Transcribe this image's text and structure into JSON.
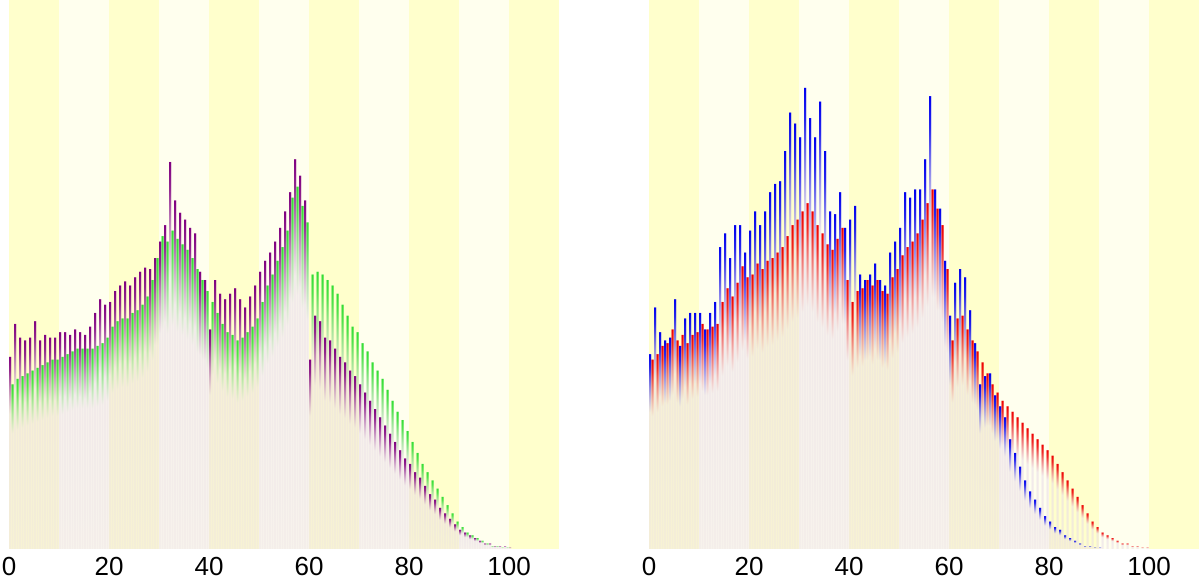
{
  "chart_data": [
    {
      "type": "bar",
      "title": "",
      "xlabel": "",
      "ylabel": "",
      "xlim": [
        0,
        110
      ],
      "ylim": [
        0,
        400
      ],
      "x_ticks": [
        "0",
        "20",
        "40",
        "60",
        "80",
        "100"
      ],
      "x_tick_values": [
        0,
        20,
        40,
        60,
        80,
        100
      ],
      "background_bands": {
        "width": 10,
        "colors": [
          "#ffffcc",
          "#ffffee"
        ]
      },
      "series": [
        {
          "color": "#800080",
          "x": [
            0,
            1,
            2,
            3,
            4,
            5,
            6,
            7,
            8,
            9,
            10,
            11,
            12,
            13,
            14,
            15,
            16,
            17,
            18,
            19,
            20,
            21,
            22,
            23,
            24,
            25,
            26,
            27,
            28,
            29,
            30,
            31,
            32,
            33,
            34,
            35,
            36,
            37,
            38,
            39,
            40,
            41,
            42,
            43,
            44,
            45,
            46,
            47,
            48,
            49,
            50,
            51,
            52,
            53,
            54,
            55,
            56,
            57,
            58,
            59,
            60,
            61,
            62,
            63,
            64,
            65,
            66,
            67,
            68,
            69,
            70,
            71,
            72,
            73,
            74,
            75,
            76,
            77,
            78,
            79,
            80,
            81,
            82,
            83,
            84,
            85,
            86,
            87,
            88,
            89,
            90,
            91,
            92,
            93,
            94,
            95,
            96,
            97,
            98,
            99,
            100
          ],
          "values": [
            140,
            164,
            154,
            152,
            154,
            166,
            152,
            156,
            154,
            154,
            158,
            158,
            156,
            160,
            158,
            156,
            162,
            172,
            182,
            178,
            180,
            188,
            192,
            195,
            192,
            198,
            202,
            205,
            204,
            212,
            224,
            236,
            282,
            254,
            245,
            240,
            234,
            230,
            202,
            196,
            160,
            196,
            186,
            182,
            186,
            190,
            182,
            176,
            184,
            192,
            202,
            210,
            216,
            224,
            234,
            246,
            260,
            284,
            272,
            254,
            138,
            170,
            166,
            154,
            152,
            146,
            140,
            136,
            130,
            126,
            120,
            114,
            108,
            102,
            96,
            90,
            84,
            78,
            72,
            66,
            62,
            56,
            52,
            46,
            40,
            36,
            30,
            26,
            22,
            18,
            14,
            12,
            10,
            8,
            6,
            4,
            4,
            2,
            2,
            2,
            1
          ]
        },
        {
          "color": "#33dd33",
          "x": [
            0,
            1,
            2,
            3,
            4,
            5,
            6,
            7,
            8,
            9,
            10,
            11,
            12,
            13,
            14,
            15,
            16,
            17,
            18,
            19,
            20,
            21,
            22,
            23,
            24,
            25,
            26,
            27,
            28,
            29,
            30,
            31,
            32,
            33,
            34,
            35,
            36,
            37,
            38,
            39,
            40,
            41,
            42,
            43,
            44,
            45,
            46,
            47,
            48,
            49,
            50,
            51,
            52,
            53,
            54,
            55,
            56,
            57,
            58,
            59,
            60,
            61,
            62,
            63,
            64,
            65,
            66,
            67,
            68,
            69,
            70,
            71,
            72,
            73,
            74,
            75,
            76,
            77,
            78,
            79,
            80,
            81,
            82,
            83,
            84,
            85,
            86,
            87,
            88,
            89,
            90,
            91,
            92,
            93,
            94,
            95,
            96,
            97,
            98,
            99,
            100
          ],
          "values": [
            120,
            124,
            126,
            128,
            130,
            132,
            134,
            136,
            138,
            138,
            140,
            142,
            144,
            146,
            146,
            146,
            146,
            148,
            150,
            154,
            162,
            166,
            168,
            168,
            172,
            174,
            178,
            184,
            196,
            212,
            228,
            224,
            232,
            226,
            222,
            218,
            212,
            204,
            196,
            188,
            180,
            172,
            164,
            158,
            156,
            152,
            154,
            158,
            162,
            168,
            180,
            192,
            200,
            210,
            220,
            232,
            256,
            264,
            250,
            238,
            200,
            202,
            200,
            196,
            192,
            186,
            178,
            170,
            162,
            158,
            150,
            144,
            136,
            130,
            124,
            116,
            108,
            100,
            94,
            86,
            78,
            70,
            62,
            56,
            50,
            44,
            38,
            32,
            26,
            20,
            16,
            12,
            10,
            8,
            6,
            4,
            2,
            2,
            1,
            1,
            0
          ]
        }
      ]
    },
    {
      "type": "bar",
      "title": "",
      "xlabel": "",
      "ylabel": "",
      "xlim": [
        0,
        110
      ],
      "ylim": [
        0,
        400
      ],
      "x_ticks": [
        "0",
        "20",
        "40",
        "60",
        "80",
        "100"
      ],
      "x_tick_values": [
        0,
        20,
        40,
        60,
        80,
        100
      ],
      "background_bands": {
        "width": 10,
        "colors": [
          "#ffffcc",
          "#ffffee"
        ]
      },
      "series": [
        {
          "color": "#0000ee",
          "x": [
            0,
            1,
            2,
            3,
            4,
            5,
            6,
            7,
            8,
            9,
            10,
            11,
            12,
            13,
            14,
            15,
            16,
            17,
            18,
            19,
            20,
            21,
            22,
            23,
            24,
            25,
            26,
            27,
            28,
            29,
            30,
            31,
            32,
            33,
            34,
            35,
            36,
            37,
            38,
            39,
            40,
            41,
            42,
            43,
            44,
            45,
            46,
            47,
            48,
            49,
            50,
            51,
            52,
            53,
            54,
            55,
            56,
            57,
            58,
            59,
            60,
            61,
            62,
            63,
            64,
            65,
            66,
            67,
            68,
            69,
            70,
            71,
            72,
            73,
            74,
            75,
            76,
            77,
            78,
            79,
            80,
            81,
            82,
            83,
            84,
            85,
            86,
            87,
            88,
            89,
            90,
            91,
            92,
            93,
            94,
            95,
            96,
            97,
            98,
            99,
            100
          ],
          "values": [
            142,
            176,
            158,
            152,
            154,
            182,
            148,
            168,
            172,
            172,
            172,
            160,
            172,
            180,
            220,
            230,
            212,
            236,
            236,
            216,
            232,
            246,
            236,
            246,
            260,
            266,
            268,
            290,
            318,
            310,
            300,
            336,
            314,
            300,
            326,
            290,
            246,
            244,
            260,
            234,
            240,
            250,
            200,
            196,
            200,
            208,
            196,
            192,
            216,
            224,
            234,
            260,
            256,
            262,
            262,
            284,
            330,
            262,
            248,
            210,
            170,
            194,
            204,
            198,
            174,
            150,
            120,
            126,
            128,
            112,
            104,
            96,
            80,
            70,
            60,
            50,
            42,
            36,
            30,
            24,
            20,
            16,
            14,
            10,
            8,
            6,
            4,
            2,
            2,
            1,
            1,
            0,
            0,
            0,
            0,
            0,
            0,
            0,
            0,
            0,
            0
          ]
        },
        {
          "color": "#ee0000",
          "x": [
            0,
            1,
            2,
            3,
            4,
            5,
            6,
            7,
            8,
            9,
            10,
            11,
            12,
            13,
            14,
            15,
            16,
            17,
            18,
            19,
            20,
            21,
            22,
            23,
            24,
            25,
            26,
            27,
            28,
            29,
            30,
            31,
            32,
            33,
            34,
            35,
            36,
            37,
            38,
            39,
            40,
            41,
            42,
            43,
            44,
            45,
            46,
            47,
            48,
            49,
            50,
            51,
            52,
            53,
            54,
            55,
            56,
            57,
            58,
            59,
            60,
            61,
            62,
            63,
            64,
            65,
            66,
            67,
            68,
            69,
            70,
            71,
            72,
            73,
            74,
            75,
            76,
            77,
            78,
            79,
            80,
            81,
            82,
            83,
            84,
            85,
            86,
            87,
            88,
            89,
            90,
            91,
            92,
            93,
            94,
            95,
            96,
            97,
            98,
            99,
            100
          ],
          "values": [
            138,
            142,
            148,
            150,
            160,
            152,
            156,
            150,
            156,
            158,
            164,
            160,
            162,
            164,
            180,
            190,
            184,
            194,
            206,
            198,
            200,
            208,
            204,
            210,
            212,
            216,
            220,
            228,
            236,
            240,
            246,
            252,
            246,
            236,
            230,
            222,
            218,
            226,
            234,
            196,
            180,
            188,
            190,
            196,
            192,
            196,
            188,
            186,
            198,
            204,
            214,
            220,
            224,
            230,
            240,
            252,
            262,
            248,
            236,
            204,
            152,
            168,
            170,
            160,
            152,
            144,
            136,
            128,
            120,
            114,
            108,
            104,
            100,
            96,
            92,
            88,
            84,
            80,
            76,
            72,
            68,
            62,
            56,
            50,
            44,
            38,
            32,
            26,
            20,
            16,
            12,
            10,
            8,
            6,
            4,
            4,
            2,
            2,
            1,
            1,
            0
          ]
        }
      ]
    }
  ]
}
